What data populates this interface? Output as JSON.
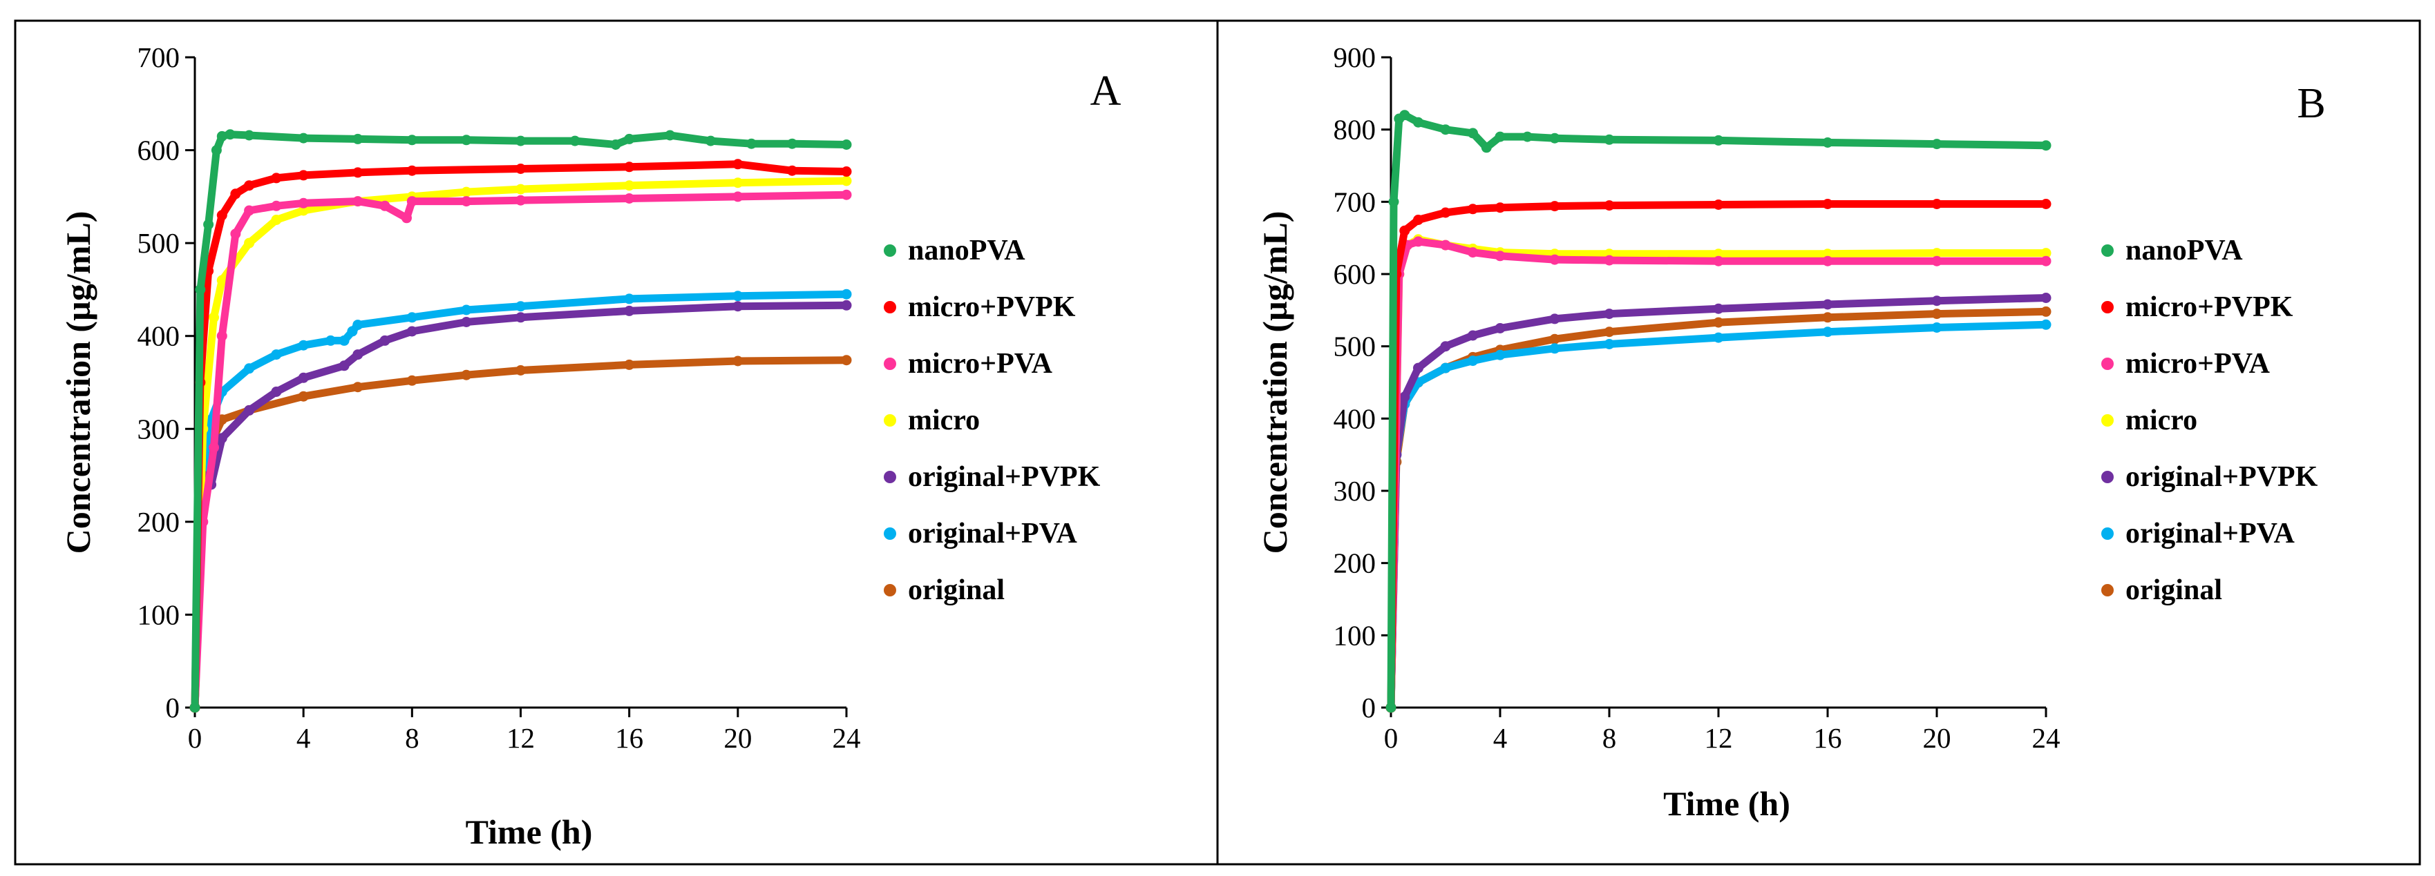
{
  "chart_data": [
    {
      "type": "scatter",
      "panel_label": "A",
      "xlabel": "Time (h)",
      "ylabel": "Concentration (µg/mL)",
      "xlim": [
        0,
        24
      ],
      "ylim": [
        0,
        700
      ],
      "xticks": [
        "0",
        "4",
        "8",
        "12",
        "16",
        "20",
        "24"
      ],
      "yticks": [
        "0",
        "100",
        "200",
        "300",
        "400",
        "500",
        "600",
        "700"
      ],
      "grid": false,
      "legend_position": "right",
      "series": [
        {
          "name": "nanoPVA",
          "color": "#1FAA59",
          "x": [
            0,
            0.2,
            0.5,
            0.8,
            1.0,
            1.3,
            2,
            4,
            6,
            8,
            10,
            12,
            14,
            15.5,
            16,
            17.5,
            19,
            20.5,
            22,
            24
          ],
          "y": [
            0,
            450,
            520,
            600,
            615,
            617,
            616,
            613,
            612,
            611,
            611,
            610,
            610,
            606,
            612,
            616,
            610,
            607,
            607,
            606
          ]
        },
        {
          "name": "micro+PVPK",
          "color": "#FF0000",
          "x": [
            0,
            0.2,
            0.5,
            1,
            1.5,
            2,
            3,
            4,
            6,
            8,
            12,
            16,
            20,
            22,
            24
          ],
          "y": [
            0,
            350,
            470,
            530,
            553,
            562,
            570,
            573,
            576,
            578,
            580,
            582,
            585,
            578,
            577
          ]
        },
        {
          "name": "micro+PVA",
          "color": "#FF3399",
          "x": [
            0,
            0.3,
            0.7,
            1,
            1.5,
            2,
            3,
            4,
            6,
            7,
            7.8,
            8,
            10,
            12,
            16,
            20,
            24
          ],
          "y": [
            0,
            200,
            280,
            400,
            510,
            535,
            540,
            543,
            545,
            540,
            527,
            545,
            545,
            546,
            548,
            550,
            552
          ]
        },
        {
          "name": "micro",
          "color": "#FFFF00",
          "x": [
            0,
            0.3,
            0.7,
            1,
            2,
            3,
            4,
            6,
            8,
            10,
            12,
            16,
            20,
            24
          ],
          "y": [
            0,
            300,
            420,
            460,
            500,
            525,
            535,
            545,
            550,
            555,
            558,
            562,
            565,
            567
          ]
        },
        {
          "name": "original+PVPK",
          "color": "#7030A0",
          "x": [
            0,
            0.3,
            0.6,
            1,
            2,
            3,
            4,
            5.5,
            6,
            7,
            8,
            10,
            12,
            16,
            20,
            24
          ],
          "y": [
            0,
            250,
            240,
            290,
            320,
            340,
            355,
            368,
            380,
            395,
            405,
            415,
            420,
            427,
            432,
            433
          ]
        },
        {
          "name": "original+PVA",
          "color": "#00B0F0",
          "x": [
            0,
            0.3,
            0.6,
            1,
            2,
            3,
            4,
            5,
            5.5,
            5.8,
            6,
            8,
            10,
            12,
            16,
            20,
            24
          ],
          "y": [
            0,
            250,
            310,
            340,
            365,
            380,
            390,
            395,
            395,
            405,
            412,
            420,
            428,
            432,
            440,
            443,
            445
          ]
        },
        {
          "name": "original",
          "color": "#C55A11",
          "x": [
            0,
            0.3,
            0.6,
            1,
            2,
            4,
            6,
            8,
            10,
            12,
            16,
            20,
            24
          ],
          "y": [
            0,
            250,
            285,
            310,
            320,
            335,
            345,
            352,
            358,
            363,
            369,
            373,
            374
          ]
        }
      ]
    },
    {
      "type": "scatter",
      "panel_label": "B",
      "xlabel": "Time (h)",
      "ylabel": "Concentration (µg/mL)",
      "xlim": [
        0,
        24
      ],
      "ylim": [
        0,
        900
      ],
      "xticks": [
        "0",
        "4",
        "8",
        "12",
        "16",
        "20",
        "24"
      ],
      "yticks": [
        "0",
        "100",
        "200",
        "300",
        "400",
        "500",
        "600",
        "700",
        "800",
        "900"
      ],
      "grid": false,
      "legend_position": "right",
      "series": [
        {
          "name": "nanoPVA",
          "color": "#1FAA59",
          "x": [
            0,
            0.1,
            0.3,
            0.5,
            1,
            2,
            3,
            3.5,
            4,
            5,
            6,
            8,
            12,
            16,
            20,
            24
          ],
          "y": [
            0,
            700,
            815,
            820,
            810,
            800,
            795,
            775,
            790,
            790,
            788,
            786,
            785,
            782,
            780,
            778
          ]
        },
        {
          "name": "micro+PVPK",
          "color": "#FF0000",
          "x": [
            0,
            0.2,
            0.5,
            1,
            2,
            3,
            4,
            6,
            8,
            12,
            16,
            20,
            24
          ],
          "y": [
            0,
            600,
            660,
            675,
            685,
            690,
            692,
            694,
            695,
            696,
            697,
            697,
            697
          ]
        },
        {
          "name": "micro+PVA",
          "color": "#FF3399",
          "x": [
            0,
            0.3,
            0.6,
            1,
            2,
            3,
            4,
            6,
            8,
            12,
            16,
            20,
            24
          ],
          "y": [
            0,
            600,
            640,
            645,
            640,
            630,
            625,
            620,
            619,
            618,
            618,
            618,
            618
          ]
        },
        {
          "name": "micro",
          "color": "#FFFF00",
          "x": [
            0,
            0.3,
            0.6,
            1,
            2,
            3,
            4,
            6,
            8,
            12,
            16,
            20,
            24
          ],
          "y": [
            0,
            600,
            640,
            648,
            640,
            635,
            630,
            628,
            628,
            628,
            628,
            629,
            629
          ]
        },
        {
          "name": "original+PVPK",
          "color": "#7030A0",
          "x": [
            0,
            0.2,
            0.5,
            1,
            2,
            3,
            4,
            6,
            8,
            12,
            16,
            20,
            24
          ],
          "y": [
            0,
            350,
            430,
            470,
            500,
            515,
            525,
            538,
            545,
            552,
            558,
            563,
            567
          ]
        },
        {
          "name": "original+PVA",
          "color": "#00B0F0",
          "x": [
            0,
            0.2,
            0.5,
            1,
            2,
            3,
            4,
            6,
            8,
            12,
            16,
            20,
            24
          ],
          "y": [
            0,
            350,
            420,
            450,
            470,
            480,
            488,
            497,
            503,
            512,
            520,
            526,
            530
          ]
        },
        {
          "name": "original",
          "color": "#C55A11",
          "x": [
            0,
            0.2,
            0.5,
            1,
            2,
            3,
            4,
            6,
            8,
            12,
            16,
            20,
            24
          ],
          "y": [
            0,
            340,
            420,
            450,
            470,
            485,
            495,
            510,
            520,
            533,
            540,
            545,
            548
          ]
        }
      ]
    }
  ]
}
